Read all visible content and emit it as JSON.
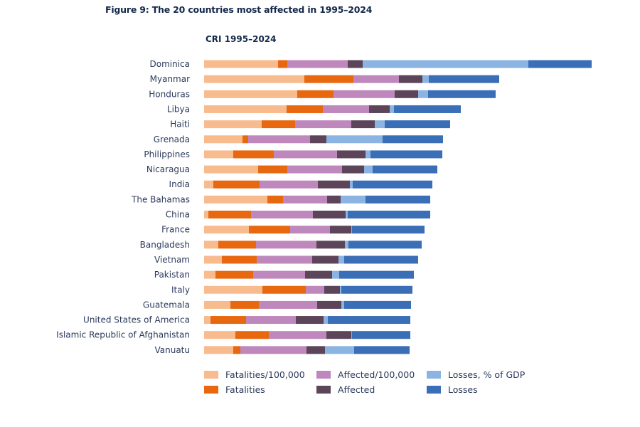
{
  "figure_title": "Figure 9: The 20 countries most affected in 1995–2024",
  "chart_data": {
    "type": "bar",
    "orientation": "horizontal",
    "stacked": true,
    "title": "CRI 1995–2024",
    "xlabel": "",
    "ylabel": "",
    "xlim": [
      0,
      550
    ],
    "grid": false,
    "legend_position": "bottom",
    "categories": [
      "Dominica",
      "Myanmar",
      "Honduras",
      "Libya",
      "Haiti",
      "Grenada",
      "Philippines",
      "Nicaragua",
      "India",
      "The Bahamas",
      "China",
      "France",
      "Bangladesh",
      "Vietnam",
      "Pakistan",
      "Italy",
      "Guatemala",
      "United States of America",
      "Islamic Republic of Afghanistan",
      "Vanuatu"
    ],
    "series": [
      {
        "name": "Fatalities/100,000",
        "color": "#f8bb8e",
        "values": [
          104,
          141,
          131,
          116,
          81,
          54,
          41,
          76,
          13,
          89,
          6,
          63,
          20,
          25,
          16,
          82,
          37,
          9,
          44,
          41
        ]
      },
      {
        "name": "Fatalities",
        "color": "#e8680f",
        "values": [
          13,
          69,
          51,
          51,
          47,
          8,
          57,
          41,
          65,
          22,
          60,
          58,
          53,
          49,
          53,
          61,
          40,
          50,
          47,
          10
        ]
      },
      {
        "name": "Affected/100,000",
        "color": "#bf88bd",
        "values": [
          85,
          64,
          86,
          65,
          79,
          87,
          89,
          77,
          82,
          62,
          87,
          56,
          85,
          78,
          73,
          26,
          82,
          70,
          81,
          93
        ]
      },
      {
        "name": "Affected",
        "color": "#5c4459",
        "values": [
          21,
          33,
          33,
          29,
          33,
          23,
          40,
          31,
          45,
          19,
          46,
          30,
          40,
          37,
          38,
          22,
          34,
          39,
          35,
          26
        ]
      },
      {
        "name": "Losses, % of GDP",
        "color": "#8cb4e2",
        "values": [
          233,
          9,
          14,
          6,
          14,
          79,
          7,
          12,
          4,
          35,
          3,
          1,
          5,
          8,
          10,
          2,
          4,
          6,
          1,
          41
        ]
      },
      {
        "name": "Losses",
        "color": "#3a6eb6",
        "values": [
          89,
          99,
          95,
          94,
          92,
          85,
          101,
          91,
          112,
          91,
          116,
          102,
          103,
          104,
          105,
          100,
          94,
          116,
          82,
          78
        ]
      }
    ]
  }
}
